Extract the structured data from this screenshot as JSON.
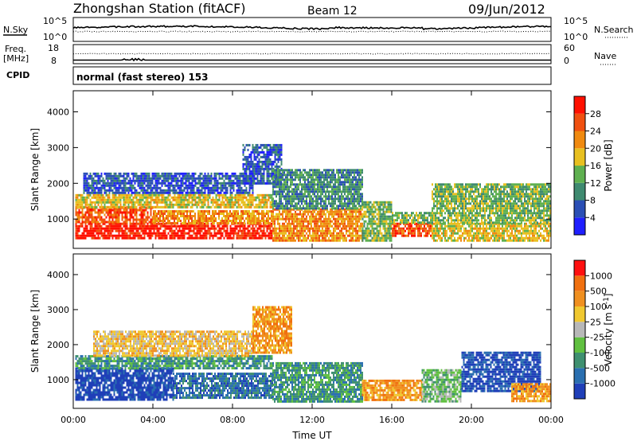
{
  "header": {
    "station": "Zhongshan Station (fitACF)",
    "beam": "Beam 12",
    "date": "09/Jun/2012"
  },
  "strips": {
    "nsky": {
      "label": "N.Sky",
      "tick_top": "10^5",
      "tick_bottom": "10^0"
    },
    "nsearch": {
      "label": "N.Search",
      "tick_top": "10^5",
      "tick_bottom": "10^0"
    },
    "freq": {
      "label_line1": "Freq.",
      "label_line2": "[MHz]",
      "tick_top": "18",
      "tick_bottom": "8"
    },
    "nave": {
      "label": "Nave",
      "tick_top": "60",
      "tick_bottom": "0"
    },
    "cpid": {
      "label": "CPID",
      "value": "normal (fast stereo) 153"
    }
  },
  "chart_data": [
    {
      "type": "heatmap",
      "name": "power",
      "xlabel": "Time UT",
      "ylabel": "Slant Range [km]",
      "x_ticks": [
        "00:00",
        "04:00",
        "08:00",
        "12:00",
        "16:00",
        "20:00",
        "00:00"
      ],
      "xlim_hours": [
        0,
        24
      ],
      "y_ticks": [
        1000,
        2000,
        3000,
        4000
      ],
      "ylim": [
        180,
        4590
      ],
      "colorbar": {
        "label": "Power [dB]",
        "ticks": [
          "4",
          "8",
          "12",
          "16",
          "20",
          "24",
          "28"
        ],
        "range": [
          0,
          32
        ],
        "colors": [
          "#1f1fff",
          "#2b4fb5",
          "#3f8a70",
          "#5fb050",
          "#e8c020",
          "#f08a10",
          "#f05010",
          "#ff1000"
        ]
      },
      "regions": [
        {
          "t0": 0.1,
          "t1": 10.0,
          "r0": 450,
          "r1": 900,
          "level": 7
        },
        {
          "t0": 0.1,
          "t1": 4.0,
          "r0": 900,
          "r1": 1350,
          "level": 6
        },
        {
          "t0": 4.0,
          "t1": 10.0,
          "r0": 900,
          "r1": 1250,
          "level": 5
        },
        {
          "t0": 0.1,
          "t1": 10.0,
          "r0": 1350,
          "r1": 1700,
          "level": 4
        },
        {
          "t0": 0.5,
          "t1": 9.0,
          "r0": 1700,
          "r1": 2300,
          "level": 1
        },
        {
          "t0": 8.5,
          "t1": 10.5,
          "r0": 2000,
          "r1": 3100,
          "level": 1
        },
        {
          "t0": 10.0,
          "t1": 14.5,
          "r0": 400,
          "r1": 1300,
          "level": 5
        },
        {
          "t0": 10.0,
          "t1": 14.5,
          "r0": 1300,
          "r1": 2400,
          "level": 2
        },
        {
          "t0": 14.5,
          "t1": 16.0,
          "r0": 400,
          "r1": 1500,
          "level": 3
        },
        {
          "t0": 16.0,
          "t1": 18.0,
          "r0": 550,
          "r1": 900,
          "level": 6
        },
        {
          "t0": 16.0,
          "t1": 18.0,
          "r0": 900,
          "r1": 1200,
          "level": 3
        },
        {
          "t0": 18.0,
          "t1": 24.0,
          "r0": 400,
          "r1": 900,
          "level": 4
        },
        {
          "t0": 18.0,
          "t1": 24.0,
          "r0": 900,
          "r1": 2000,
          "level": 3
        }
      ]
    },
    {
      "type": "heatmap",
      "name": "velocity",
      "xlabel": "Time UT",
      "ylabel": "Slant Range [km]",
      "x_ticks": [
        "00:00",
        "04:00",
        "08:00",
        "12:00",
        "16:00",
        "20:00",
        "00:00"
      ],
      "xlim_hours": [
        0,
        24
      ],
      "y_ticks": [
        1000,
        2000,
        3000,
        4000
      ],
      "ylim": [
        180,
        4590
      ],
      "colorbar": {
        "label": "Velocity [m s^-1]",
        "ticks": [
          "1000",
          "500",
          "100",
          "25",
          "-25",
          "-100",
          "-500",
          "-1000"
        ],
        "range": [
          -1250,
          1250
        ],
        "colors": [
          "#1f3fb8",
          "#2a6fb0",
          "#3f9070",
          "#60c040",
          "#b8b8b8",
          "#f0c830",
          "#f09020",
          "#f07010",
          "#ff1010"
        ]
      },
      "regions": [
        {
          "t0": 0.1,
          "t1": 5.0,
          "r0": 450,
          "r1": 1350,
          "level": 0
        },
        {
          "t0": 5.0,
          "t1": 10.0,
          "r0": 450,
          "r1": 1200,
          "level": 1
        },
        {
          "t0": 0.1,
          "t1": 10.0,
          "r0": 1350,
          "r1": 1700,
          "level": 2
        },
        {
          "t0": 1.0,
          "t1": 9.0,
          "r0": 1700,
          "r1": 2400,
          "level": 5
        },
        {
          "t0": 9.0,
          "t1": 11.0,
          "r0": 1800,
          "r1": 3100,
          "level": 6
        },
        {
          "t0": 10.0,
          "t1": 14.5,
          "r0": 400,
          "r1": 1500,
          "level": 2
        },
        {
          "t0": 14.5,
          "t1": 17.5,
          "r0": 400,
          "r1": 1000,
          "level": 6
        },
        {
          "t0": 17.5,
          "t1": 19.5,
          "r0": 400,
          "r1": 1300,
          "level": 3
        },
        {
          "t0": 19.5,
          "t1": 23.5,
          "r0": 700,
          "r1": 1800,
          "level": 0
        },
        {
          "t0": 22.0,
          "t1": 24.0,
          "r0": 400,
          "r1": 900,
          "level": 6
        }
      ]
    }
  ]
}
